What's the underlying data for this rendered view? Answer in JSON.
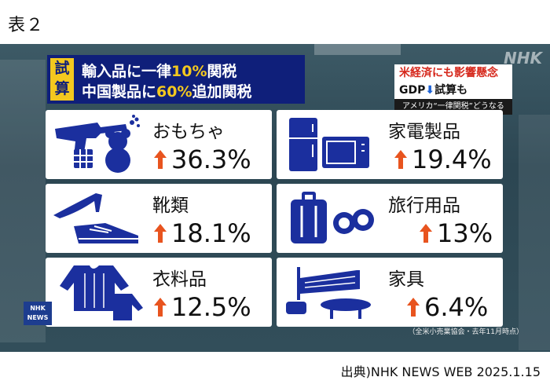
{
  "figure_label": "表２",
  "header": {
    "tag": "試算",
    "title_line1": {
      "pre": "輸入品に一律",
      "highlight": "10%",
      "post": "関税"
    },
    "title_line2": {
      "pre": "中国製品に",
      "highlight": "60%",
      "post": "追加関税"
    }
  },
  "broadcaster_logo": "NHK",
  "side_panel": {
    "line1": "米経済にも影響懸念",
    "line2_pre": "GDP",
    "line2_post": "試算も",
    "line3": "アメリカ“一律関税”どうなる"
  },
  "items": [
    {
      "label": "おもちゃ",
      "value": "36.3%",
      "icon": "toy-gun-teddy-bear-icon"
    },
    {
      "label": "家電製品",
      "value": "19.4%",
      "icon": "fridge-microwave-icon"
    },
    {
      "label": "靴類",
      "value": "18.1%",
      "icon": "heel-sneaker-icon"
    },
    {
      "label": "旅行用品",
      "value": "13%",
      "icon": "suitcase-binoculars-icon"
    },
    {
      "label": "衣料品",
      "value": "12.5%",
      "icon": "sweater-icon"
    },
    {
      "label": "家具",
      "value": "6.4%",
      "icon": "bed-table-icon"
    }
  ],
  "news_badge": "NHK NEWS",
  "source_note": "（全米小売業協会・去年11月時点）",
  "credit": "出典)NHK NEWS WEB 2025.1.15",
  "colors": {
    "navy": "#0f1f7a",
    "icon_blue": "#1b2f9e",
    "accent_yellow": "#f3c81f",
    "arrow_orange": "#e8541f",
    "alert_red": "#d6281c"
  }
}
